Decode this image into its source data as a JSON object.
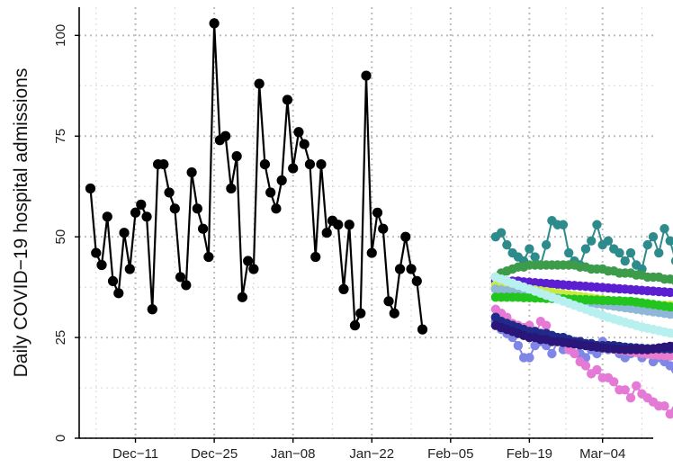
{
  "chart_data": {
    "type": "line",
    "title": "",
    "xlabel": "",
    "ylabel": "Daily COVID−19 hospital admissions",
    "ylim": [
      0,
      107
    ],
    "xlim": [
      "2022-12-01",
      "2023-03-13"
    ],
    "grid": true,
    "legend": "none",
    "y_ticks": [
      0,
      25,
      50,
      75,
      100
    ],
    "x_ticks": [
      {
        "date": "2022-12-11",
        "label": "Dec−11"
      },
      {
        "date": "2022-12-25",
        "label": "Dec−25"
      },
      {
        "date": "2023-01-08",
        "label": "Jan−08"
      },
      {
        "date": "2023-01-22",
        "label": "Jan−22"
      },
      {
        "date": "2023-02-05",
        "label": "Feb−05"
      },
      {
        "date": "2023-02-19",
        "label": "Feb−19"
      },
      {
        "date": "2023-03-04",
        "label": "Mar−04"
      }
    ],
    "observed": {
      "start_date": "2022-12-03",
      "color": "#000000",
      "values": [
        62,
        46,
        43,
        55,
        39,
        36,
        51,
        42,
        56,
        58,
        55,
        32,
        68,
        68,
        61,
        57,
        40,
        38,
        66,
        57,
        52,
        45,
        103,
        74,
        75,
        62,
        70,
        35,
        44,
        42,
        88,
        68,
        61,
        57,
        64,
        84,
        67,
        76,
        73,
        68,
        45,
        68,
        51,
        54,
        53,
        37,
        53,
        28,
        31,
        90,
        46,
        56,
        52,
        34,
        31,
        42,
        50,
        42,
        39,
        27
      ]
    },
    "forecast_start_date": "2023-02-13",
    "forecasts": [
      {
        "color": "#2e8b8b",
        "values": [
          50,
          51,
          48,
          46,
          45,
          44,
          47,
          45,
          43,
          48,
          54,
          53,
          53,
          46,
          44,
          43,
          47,
          49,
          53,
          48,
          49,
          47,
          46,
          44,
          46,
          43,
          42,
          48,
          50,
          46,
          52,
          49,
          44,
          41,
          48
        ]
      },
      {
        "color": "#3c9c4a",
        "values": [
          40,
          41,
          41.5,
          42,
          42.5,
          42.5,
          43,
          43,
          43,
          43,
          43,
          43,
          43,
          43,
          43,
          42.5,
          42.5,
          42,
          42,
          42,
          41.5,
          41.5,
          41,
          41,
          41,
          40.5,
          40.5,
          40,
          40,
          40,
          39.5,
          39.5,
          39,
          39,
          39
        ]
      },
      {
        "color": "#5b1fd1",
        "values": [
          39,
          39,
          39,
          39,
          39,
          38.8,
          38.7,
          38.6,
          38.5,
          38.4,
          38.3,
          38.2,
          38.1,
          38,
          37.9,
          37.8,
          37.7,
          37.6,
          37.5,
          37.4,
          37.3,
          37.2,
          37.1,
          37,
          36.9,
          36.8,
          36.7,
          36.6,
          36.5,
          36.4,
          36.3,
          36.2,
          36.1,
          36,
          36
        ]
      },
      {
        "color": "#c9ea3f",
        "values": [
          38,
          38,
          37.8,
          37.6,
          37.4,
          37.2,
          37,
          36.8,
          36.6,
          36.4,
          36.2,
          36,
          35.8,
          35.6,
          35.4,
          35.2,
          35,
          34.8,
          34.6,
          34.4,
          34.2,
          34,
          33.8,
          33.6,
          33.4,
          33.2,
          33,
          33,
          33,
          33,
          33,
          33,
          33,
          33,
          33
        ]
      },
      {
        "color": "#8fb8d8",
        "values": [
          37,
          36.8,
          36.6,
          36.4,
          36.2,
          36,
          35.8,
          35.6,
          35.4,
          35.2,
          35,
          34.8,
          34.6,
          34.4,
          34.2,
          34,
          33.8,
          33.6,
          33.4,
          33.2,
          33,
          32.8,
          32.6,
          32.4,
          32.2,
          32,
          31.8,
          31.6,
          31.4,
          31.2,
          31,
          30.8,
          30.6,
          30.4,
          30.2
        ]
      },
      {
        "color": "#22c41e",
        "values": [
          35,
          35,
          35,
          35,
          35,
          34.9,
          34.9,
          34.8,
          34.8,
          34.7,
          34.7,
          34.6,
          34.6,
          34.5,
          34.5,
          34.4,
          34.4,
          34.3,
          34.3,
          34.2,
          34.2,
          34.1,
          34.1,
          34,
          34,
          33.8,
          33.6,
          33.4,
          33.2,
          33,
          32.8,
          32.6,
          32.4,
          32.2,
          32
        ]
      },
      {
        "color": "#b7f0ef",
        "values": [
          40,
          39.5,
          39,
          38.5,
          38,
          37.5,
          37,
          36.5,
          36,
          35.5,
          35,
          34.5,
          34,
          33.5,
          33,
          32.5,
          32,
          31.5,
          31,
          30.5,
          30,
          29.6,
          29.2,
          28.8,
          28.4,
          28,
          27.6,
          27.3,
          27,
          26.7,
          26.4,
          26.1,
          25.8,
          25.5,
          25.3
        ]
      },
      {
        "color": "#7f86e6",
        "values": [
          29,
          27,
          26,
          25,
          23,
          20,
          20,
          23,
          24,
          23,
          21,
          24,
          22,
          22,
          24,
          21,
          20,
          22,
          21,
          24,
          22,
          23,
          21,
          20,
          21,
          22,
          20,
          21,
          19,
          20,
          19,
          18,
          17,
          16,
          16
        ]
      },
      {
        "color": "#e57ad6",
        "values": [
          32,
          31,
          30,
          28,
          27,
          26,
          28,
          25,
          29,
          28,
          25,
          24,
          24,
          22,
          21,
          19,
          18,
          16,
          17,
          15,
          15,
          14,
          12,
          12,
          10,
          13,
          11,
          10,
          9,
          8,
          8,
          6,
          7,
          5,
          5
        ]
      },
      {
        "color": "#ea7cce",
        "values": [
          30,
          29,
          29,
          28.5,
          28,
          27.5,
          27,
          26.5,
          26,
          25.5,
          25,
          24.8,
          24.5,
          24.2,
          24,
          23.7,
          23.4,
          23.1,
          22.8,
          22.5,
          22.3,
          22.1,
          21.9,
          21.7,
          21.5,
          21.3,
          21.1,
          20.9,
          20.7,
          20.6,
          20.5,
          20.4,
          20.3,
          20.2,
          20.1
        ]
      },
      {
        "color": "#1f2a8a",
        "values": [
          30,
          29,
          28.5,
          28,
          27.5,
          27,
          26.5,
          26.5,
          26,
          26,
          25.5,
          25,
          25,
          24.5,
          24,
          24,
          23.5,
          23.5,
          23,
          23,
          23,
          23,
          22.8,
          22.6,
          22.5,
          22.4,
          22.3,
          22.2,
          22.2,
          22.2,
          22.2,
          22.2,
          22.2,
          22.2,
          22.2
        ]
      },
      {
        "color": "#2a1678",
        "values": [
          28,
          27.5,
          27,
          26.5,
          26,
          25.5,
          25,
          25,
          24.5,
          24.5,
          24,
          24,
          23.8,
          23.6,
          23.4,
          23.2,
          23,
          22.8,
          22.6,
          22.4,
          22.3,
          22.2,
          22.1,
          22,
          22,
          22,
          22,
          22,
          22.2,
          22.4,
          22.6,
          22.8,
          23,
          23.2,
          23.5
        ]
      }
    ]
  }
}
